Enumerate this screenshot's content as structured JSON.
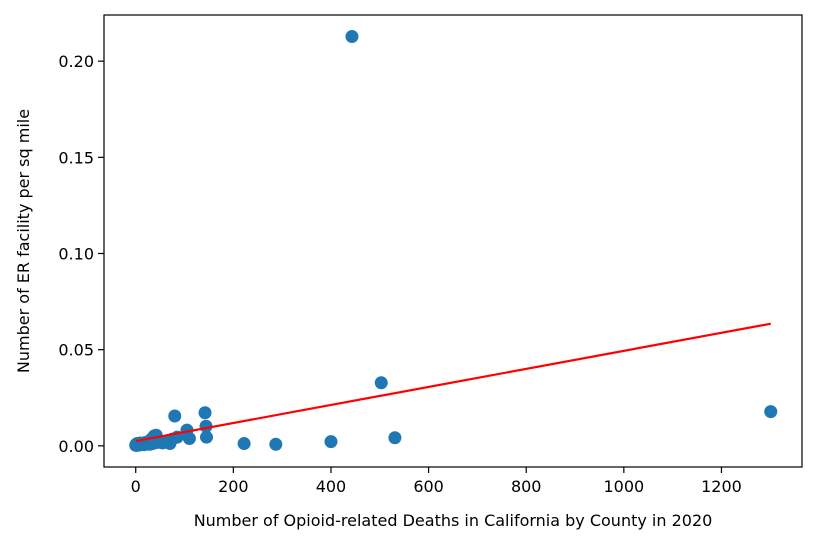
{
  "chart_data": {
    "type": "scatter",
    "title": "",
    "xlabel": "Number of Opioid-related Deaths in California by County in 2020",
    "ylabel": "Number of ER facility per sq mile",
    "xlim": [
      -65,
      1365
    ],
    "ylim": [
      -0.011,
      0.224
    ],
    "x_ticks": [
      0,
      200,
      400,
      600,
      800,
      1000,
      1200
    ],
    "x_tick_labels": [
      "0",
      "200",
      "400",
      "600",
      "800",
      "1000",
      "1200"
    ],
    "y_ticks": [
      0.0,
      0.05,
      0.1,
      0.15,
      0.2
    ],
    "y_tick_labels": [
      "0.00",
      "0.05",
      "0.10",
      "0.15",
      "0.20"
    ],
    "grid": false,
    "legend": "none",
    "series": [
      {
        "kind": "points",
        "color": "#1f77b4",
        "points": [
          {
            "x": 0,
            "y": 0.0003
          },
          {
            "x": 1,
            "y": 0.0008
          },
          {
            "x": 2,
            "y": 0.0002
          },
          {
            "x": 3,
            "y": 0.0012
          },
          {
            "x": 4,
            "y": 0.0005
          },
          {
            "x": 5,
            "y": 0.0009
          },
          {
            "x": 7,
            "y": 0.0004
          },
          {
            "x": 9,
            "y": 0.0015
          },
          {
            "x": 11,
            "y": 0.0007
          },
          {
            "x": 14,
            "y": 0.0011
          },
          {
            "x": 17,
            "y": 0.0006
          },
          {
            "x": 20,
            "y": 0.0018
          },
          {
            "x": 23,
            "y": 0.0009
          },
          {
            "x": 26,
            "y": 0.0013
          },
          {
            "x": 29,
            "y": 0.0008
          },
          {
            "x": 32,
            "y": 0.0035
          },
          {
            "x": 35,
            "y": 0.0012
          },
          {
            "x": 38,
            "y": 0.0052
          },
          {
            "x": 42,
            "y": 0.0055
          },
          {
            "x": 45,
            "y": 0.0018
          },
          {
            "x": 50,
            "y": 0.0025
          },
          {
            "x": 55,
            "y": 0.0015
          },
          {
            "x": 60,
            "y": 0.0022
          },
          {
            "x": 66,
            "y": 0.0028
          },
          {
            "x": 70,
            "y": 0.0012
          },
          {
            "x": 75,
            "y": 0.0035
          },
          {
            "x": 80,
            "y": 0.0155
          },
          {
            "x": 85,
            "y": 0.0045
          },
          {
            "x": 105,
            "y": 0.0082
          },
          {
            "x": 110,
            "y": 0.0038
          },
          {
            "x": 142,
            "y": 0.0172
          },
          {
            "x": 144,
            "y": 0.0102
          },
          {
            "x": 145,
            "y": 0.0045
          },
          {
            "x": 222,
            "y": 0.0012
          },
          {
            "x": 287,
            "y": 0.0008
          },
          {
            "x": 400,
            "y": 0.0022
          },
          {
            "x": 443,
            "y": 0.2128
          },
          {
            "x": 503,
            "y": 0.0328
          },
          {
            "x": 531,
            "y": 0.0042
          },
          {
            "x": 1301,
            "y": 0.0178
          }
        ]
      },
      {
        "kind": "trend_line",
        "color": "#ff0000",
        "x": [
          0,
          1301
        ],
        "y": [
          0.0025,
          0.0635
        ]
      }
    ]
  }
}
